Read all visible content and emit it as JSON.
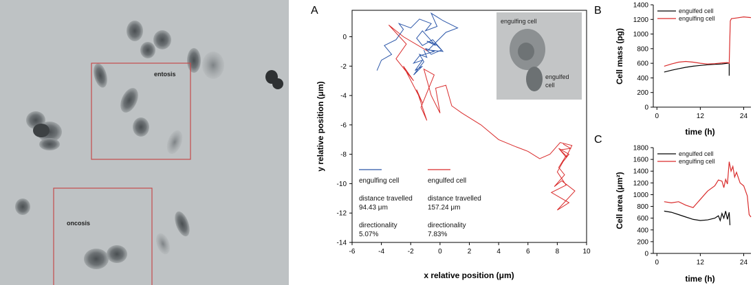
{
  "micrograph": {
    "regions": [
      {
        "label": "entosis"
      },
      {
        "label": "oncosis"
      }
    ]
  },
  "panel_letters": {
    "a": "A",
    "b": "B",
    "c": "C"
  },
  "chart_data": [
    {
      "panel": "A",
      "type": "line",
      "xlabel": "x relative position (μm)",
      "ylabel": "y relative position (μm)",
      "xlim": [
        -6,
        10
      ],
      "ylim": [
        -14,
        1.8
      ],
      "xticks": [
        -6,
        -4,
        -2,
        0,
        2,
        4,
        6,
        8,
        10
      ],
      "yticks": [
        0,
        -2,
        -4,
        -6,
        -8,
        -10,
        -12,
        -14
      ],
      "inset": {
        "top_label": "engulfing cell",
        "bottom_label": "engulfed\ncell"
      },
      "legend": [
        {
          "name": "engulfing cell",
          "color": "#2b56a8",
          "distance_label": "distance travelled",
          "distance": "94.43 μm",
          "directionality_label": "directionality",
          "directionality": "5.07%"
        },
        {
          "name": "engulfed cell",
          "color": "#d92b2b",
          "distance_label": "distance travelled",
          "distance": "157.24 μm",
          "directionality_label": "directionality",
          "directionality": "7.83%"
        }
      ],
      "series": [
        {
          "name": "engulfing cell",
          "color": "#2b56a8",
          "points": [
            [
              -4.3,
              -2.3
            ],
            [
              -4.0,
              -1.6
            ],
            [
              -3.3,
              -1.2
            ],
            [
              -3.8,
              -0.6
            ],
            [
              -3.0,
              -0.2
            ],
            [
              -2.5,
              0.5
            ],
            [
              -2.8,
              0.9
            ],
            [
              -2.0,
              0.6
            ],
            [
              -1.4,
              1.2
            ],
            [
              -0.6,
              0.9
            ],
            [
              -1.0,
              0.4
            ],
            [
              -0.2,
              0.7
            ],
            [
              -0.6,
              1.6
            ],
            [
              0.2,
              1.1
            ],
            [
              1.2,
              0.6
            ],
            [
              0.4,
              0.3
            ],
            [
              -0.2,
              -0.3
            ],
            [
              -0.8,
              -0.9
            ],
            [
              0.2,
              -1.0
            ],
            [
              -0.5,
              -0.2
            ],
            [
              -1.2,
              -0.6
            ],
            [
              -1.6,
              -0.1
            ],
            [
              -1.2,
              0.4
            ],
            [
              -0.3,
              -0.6
            ],
            [
              -0.9,
              -0.3
            ],
            [
              -0.3,
              -0.5
            ],
            [
              0.1,
              -0.9
            ],
            [
              -0.6,
              -1.2
            ],
            [
              -1.0,
              -0.8
            ],
            [
              -0.4,
              -1.0
            ],
            [
              -1.4,
              -1.3
            ],
            [
              -1.8,
              -1.8
            ],
            [
              -1.2,
              -1.6
            ],
            [
              -1.7,
              -2.3
            ],
            [
              -1.2,
              -2.0
            ],
            [
              -1.8,
              -2.6
            ],
            [
              -1.5,
              -2.2
            ],
            [
              -1.1,
              -1.7
            ],
            [
              -1.4,
              -1.2
            ],
            [
              -0.9,
              -1.4
            ],
            [
              -1.1,
              -0.9
            ]
          ]
        },
        {
          "name": "engulfed cell",
          "color": "#d92b2b",
          "points": [
            [
              -0.8,
              -1.0
            ],
            [
              -2.5,
              0.0
            ],
            [
              -3.5,
              0.8
            ],
            [
              -2.3,
              -0.5
            ],
            [
              -3.0,
              -1.5
            ],
            [
              -1.8,
              -3.0
            ],
            [
              -2.5,
              -2.0
            ],
            [
              -1.2,
              -4.5
            ],
            [
              -1.6,
              -3.6
            ],
            [
              -0.9,
              -5.7
            ],
            [
              -1.3,
              -4.8
            ],
            [
              -0.4,
              -2.6
            ],
            [
              -1.1,
              -2.2
            ],
            [
              -0.6,
              -4.0
            ],
            [
              0.0,
              -5.2
            ],
            [
              -0.3,
              -3.5
            ],
            [
              0.4,
              -3.3
            ],
            [
              0.8,
              -4.7
            ],
            [
              1.5,
              -5.2
            ],
            [
              2.8,
              -6.0
            ],
            [
              4.0,
              -7.0
            ],
            [
              5.2,
              -7.5
            ],
            [
              6.0,
              -7.8
            ],
            [
              6.8,
              -8.3
            ],
            [
              7.5,
              -8.0
            ],
            [
              8.2,
              -7.2
            ],
            [
              9.0,
              -7.4
            ],
            [
              8.6,
              -8.2
            ],
            [
              8.1,
              -7.6
            ],
            [
              8.8,
              -8.0
            ],
            [
              8.4,
              -8.5
            ],
            [
              8.0,
              -9.2
            ],
            [
              8.6,
              -10.1
            ],
            [
              7.6,
              -10.6
            ],
            [
              8.8,
              -11.3
            ],
            [
              8.0,
              -11.8
            ],
            [
              9.2,
              -10.5
            ],
            [
              8.3,
              -9.8
            ],
            [
              7.8,
              -10.2
            ],
            [
              8.5,
              -9.4
            ],
            [
              8.1,
              -8.9
            ],
            [
              8.6,
              -8.1
            ],
            [
              8.2,
              -7.7
            ],
            [
              8.9,
              -7.6
            ],
            [
              8.4,
              -7.3
            ]
          ]
        }
      ]
    },
    {
      "panel": "B",
      "type": "line",
      "xlabel": "time (h)",
      "ylabel": "Cell mass (pg)",
      "xlim": [
        -1,
        26
      ],
      "ylim": [
        0,
        1400
      ],
      "xticks": [
        0,
        12,
        24
      ],
      "yticks": [
        0,
        200,
        400,
        600,
        800,
        1000,
        1200,
        1400
      ],
      "legend_position": "top-left",
      "series": [
        {
          "name": "engulfed cell",
          "color": "#000000",
          "x": [
            2.0,
            4,
            6,
            8,
            10,
            12,
            14,
            16,
            18,
            19.5,
            20.0,
            20.0
          ],
          "y": [
            480,
            505,
            525,
            545,
            560,
            570,
            580,
            585,
            590,
            600,
            605,
            430
          ]
        },
        {
          "name": "engulfing cell",
          "color": "#d92b2b",
          "x": [
            2.0,
            4,
            6,
            8,
            10,
            12,
            14,
            16,
            18,
            19.5,
            20.0,
            20.3,
            20.6,
            22,
            24,
            26
          ],
          "y": [
            560,
            590,
            615,
            625,
            615,
            600,
            590,
            595,
            605,
            610,
            600,
            1180,
            1210,
            1220,
            1235,
            1225
          ]
        }
      ]
    },
    {
      "panel": "C",
      "type": "line",
      "xlabel": "time (h)",
      "ylabel": "Cell area (μm²)",
      "xlim": [
        -1,
        26
      ],
      "ylim": [
        0,
        1800
      ],
      "xticks": [
        0,
        12,
        24
      ],
      "yticks": [
        0,
        200,
        400,
        600,
        800,
        1000,
        1200,
        1400,
        1600,
        1800
      ],
      "legend_position": "top-left",
      "series": [
        {
          "name": "engulfed cell",
          "color": "#000000",
          "x": [
            2.0,
            4,
            6,
            8,
            10,
            12,
            14,
            16,
            17,
            17.5,
            18,
            18.5,
            19,
            19.5,
            20,
            20.2
          ],
          "y": [
            720,
            700,
            660,
            620,
            580,
            560,
            570,
            600,
            640,
            560,
            680,
            600,
            720,
            580,
            700,
            480
          ]
        },
        {
          "name": "engulfing cell",
          "color": "#d92b2b",
          "x": [
            2.0,
            4,
            6,
            8,
            10,
            12,
            14,
            16,
            17,
            18,
            18.5,
            19,
            19.5,
            20,
            20.5,
            21,
            21.5,
            22,
            23,
            24,
            25,
            25.5,
            26
          ],
          "y": [
            880,
            860,
            880,
            820,
            780,
            920,
            1060,
            1150,
            1250,
            1230,
            1120,
            1260,
            1180,
            1560,
            1400,
            1480,
            1300,
            1380,
            1200,
            1150,
            980,
            660,
            620
          ]
        }
      ]
    }
  ]
}
